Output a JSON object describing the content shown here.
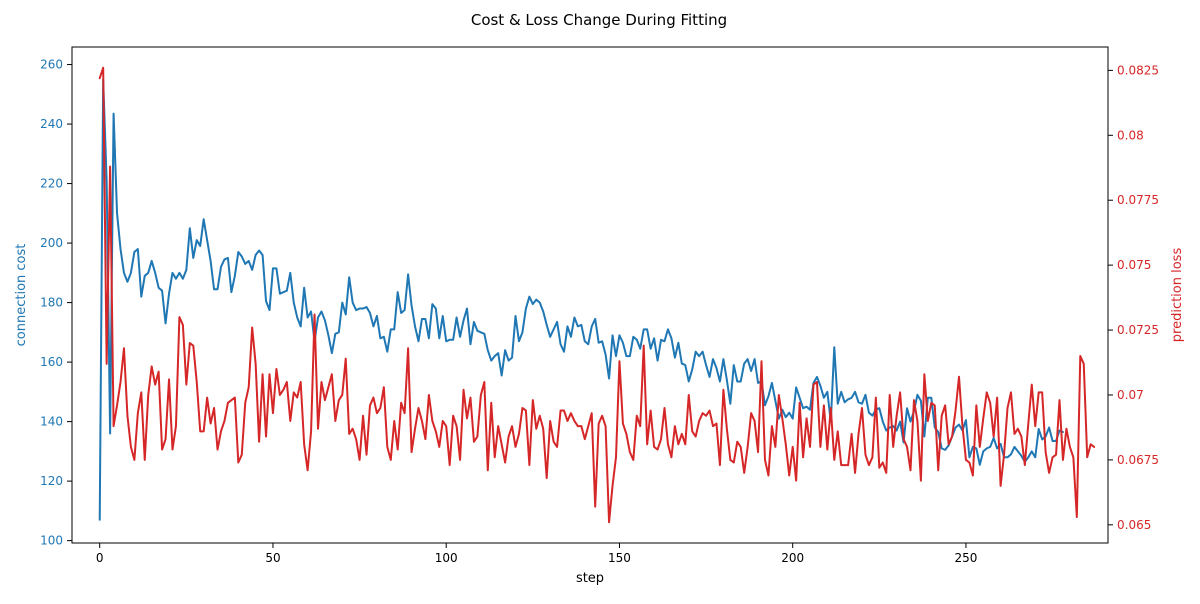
{
  "chart_data": {
    "type": "line",
    "title": "Cost & Loss Change During Fitting",
    "xlabel": "step",
    "xlim": [
      -8,
      291
    ],
    "x_ticks": [
      0,
      50,
      100,
      150,
      200,
      250
    ],
    "grid": false,
    "legend": "none",
    "series": [
      {
        "name": "connection cost",
        "axis": "left",
        "color": "#1f77b4",
        "ylabel": "connection cost",
        "ylim": [
          99.2,
          265.9
        ],
        "ticks": [
          100,
          120,
          140,
          160,
          180,
          200,
          220,
          240,
          260
        ],
        "values": [
          107.0,
          255.0,
          221.0,
          136.0,
          243.5,
          210.0,
          198.0,
          190.0,
          187.0,
          190.0,
          197.0,
          198.0,
          182.0,
          189.0,
          190.0,
          194.0,
          190.0,
          185.0,
          184.0,
          173.0,
          183.0,
          190.0,
          188.0,
          190.0,
          188.0,
          191.0,
          205.0,
          195.0,
          201.0,
          199.0,
          208.0,
          201.0,
          194.0,
          184.5,
          184.5,
          192.0,
          194.5,
          195.0,
          183.5,
          189.0,
          197.0,
          195.5,
          193.0,
          194.0,
          191.0,
          196.0,
          197.5,
          196.0,
          180.5,
          177.5,
          191.5,
          191.5,
          183.0,
          183.5,
          184.0,
          190.0,
          180.0,
          175.0,
          172.0,
          185.0,
          175.0,
          177.0,
          167.0,
          175.0,
          177.0,
          174.0,
          169.0,
          163.0,
          169.5,
          170.0,
          180.0,
          176.0,
          188.5,
          180.0,
          177.5,
          178.0,
          178.0,
          178.5,
          176.5,
          172.0,
          175.5,
          168.0,
          168.5,
          163.5,
          171.0,
          171.0,
          183.5,
          176.5,
          177.5,
          189.5,
          179.0,
          172.0,
          167.0,
          174.5,
          174.5,
          168.0,
          179.5,
          178.0,
          168.0,
          175.5,
          167.0,
          167.5,
          167.5,
          175.0,
          168.5,
          174.0,
          178.0,
          166.0,
          173.5,
          170.5,
          170.0,
          169.5,
          164.0,
          160.5,
          162.0,
          163.0,
          155.5,
          164.0,
          160.5,
          161.5,
          175.5,
          167.0,
          170.0,
          178.0,
          182.0,
          179.5,
          181.0,
          180.0,
          177.0,
          172.5,
          168.5,
          171.0,
          173.5,
          166.0,
          163.5,
          172.0,
          168.5,
          175.0,
          172.0,
          172.5,
          167.0,
          166.0,
          172.0,
          174.5,
          166.5,
          167.0,
          162.5,
          154.5,
          169.0,
          162.0,
          169.0,
          166.5,
          162.0,
          162.0,
          168.5,
          167.5,
          164.5,
          171.0,
          171.0,
          164.5,
          168.0,
          160.5,
          167.5,
          167.0,
          171.0,
          168.0,
          161.5,
          166.5,
          159.5,
          159.0,
          153.5,
          157.5,
          163.5,
          162.0,
          163.5,
          159.0,
          155.0,
          161.0,
          158.0,
          153.5,
          161.0,
          154.0,
          146.0,
          159.0,
          153.5,
          153.5,
          159.5,
          161.0,
          157.0,
          161.0,
          153.0,
          153.5,
          145.5,
          148.5,
          153.0,
          147.0,
          141.0,
          144.0,
          141.5,
          143.0,
          141.0,
          151.5,
          148.0,
          144.5,
          145.0,
          144.0,
          153.0,
          155.0,
          152.0,
          148.0,
          150.0,
          140.0,
          165.0,
          146.0,
          150.0,
          146.5,
          147.5,
          148.0,
          150.0,
          146.5,
          146.0,
          149.0,
          143.0,
          142.0,
          144.0,
          144.5,
          140.0,
          137.0,
          138.0,
          138.5,
          137.0,
          140.0,
          133.0,
          144.5,
          140.0,
          143.5,
          149.0,
          147.0,
          135.0,
          148.0,
          148.0,
          138.0,
          136.5,
          131.0,
          130.5,
          132.0,
          135.0,
          138.0,
          139.0,
          137.0,
          140.5,
          128.0,
          131.5,
          131.0,
          125.5,
          130.0,
          131.0,
          131.5,
          134.5,
          131.0,
          132.5,
          128.0,
          128.0,
          129.0,
          131.5,
          130.0,
          128.5,
          126.5,
          128.0,
          130.0,
          128.0,
          137.5,
          134.0,
          135.0,
          138.0,
          133.5,
          133.5,
          137.0,
          136.5
        ]
      },
      {
        "name": "prediction loss",
        "axis": "right",
        "color": "#d62728",
        "ylabel": "prediction loss",
        "ylim": [
          0.0643,
          0.0834
        ],
        "ticks": [
          0.065,
          0.0675,
          0.07,
          0.0725,
          0.075,
          0.0775,
          0.08,
          0.0825
        ],
        "values": [
          0.0822,
          0.0826,
          0.0712,
          0.0788,
          0.0688,
          0.0696,
          0.0705,
          0.0718,
          0.0692,
          0.068,
          0.0675,
          0.0693,
          0.0701,
          0.0675,
          0.07,
          0.0711,
          0.0704,
          0.0709,
          0.0679,
          0.0683,
          0.0706,
          0.0679,
          0.0688,
          0.073,
          0.0727,
          0.0704,
          0.072,
          0.0719,
          0.0705,
          0.0686,
          0.0686,
          0.0699,
          0.0689,
          0.0695,
          0.0679,
          0.0686,
          0.069,
          0.0697,
          0.0698,
          0.0699,
          0.0674,
          0.0677,
          0.0697,
          0.0703,
          0.0726,
          0.0712,
          0.0682,
          0.0708,
          0.0684,
          0.0708,
          0.0693,
          0.071,
          0.07,
          0.0702,
          0.0705,
          0.069,
          0.0701,
          0.0699,
          0.0705,
          0.0681,
          0.0671,
          0.0686,
          0.0731,
          0.0687,
          0.0705,
          0.0698,
          0.0703,
          0.0708,
          0.069,
          0.0698,
          0.07,
          0.0714,
          0.0685,
          0.0687,
          0.0683,
          0.0675,
          0.0692,
          0.0677,
          0.0696,
          0.0699,
          0.0693,
          0.0695,
          0.0703,
          0.068,
          0.0675,
          0.069,
          0.0679,
          0.0697,
          0.0693,
          0.0718,
          0.0678,
          0.0687,
          0.0695,
          0.069,
          0.0683,
          0.07,
          0.069,
          0.0686,
          0.068,
          0.069,
          0.0688,
          0.0673,
          0.0692,
          0.0688,
          0.0675,
          0.0702,
          0.0691,
          0.0699,
          0.0682,
          0.0684,
          0.07,
          0.0705,
          0.0671,
          0.0697,
          0.0676,
          0.0688,
          0.0681,
          0.0674,
          0.0684,
          0.0688,
          0.068,
          0.0685,
          0.0695,
          0.0694,
          0.0673,
          0.0698,
          0.0687,
          0.0692,
          0.0687,
          0.0668,
          0.069,
          0.0682,
          0.068,
          0.0694,
          0.0694,
          0.069,
          0.0693,
          0.069,
          0.0688,
          0.0688,
          0.0683,
          0.0688,
          0.0693,
          0.0657,
          0.0689,
          0.0692,
          0.0688,
          0.0651,
          0.0665,
          0.0676,
          0.0713,
          0.0689,
          0.0685,
          0.0678,
          0.0675,
          0.0692,
          0.0688,
          0.0719,
          0.0681,
          0.0694,
          0.068,
          0.0679,
          0.0683,
          0.0695,
          0.0681,
          0.0676,
          0.0688,
          0.0681,
          0.0685,
          0.0681,
          0.07,
          0.0686,
          0.0684,
          0.069,
          0.0693,
          0.0692,
          0.0694,
          0.0688,
          0.0689,
          0.0673,
          0.0702,
          0.0687,
          0.0675,
          0.0674,
          0.0682,
          0.068,
          0.067,
          0.068,
          0.0693,
          0.069,
          0.0678,
          0.0713,
          0.0675,
          0.0669,
          0.0688,
          0.068,
          0.07,
          0.0691,
          0.0681,
          0.0669,
          0.068,
          0.0667,
          0.0697,
          0.0676,
          0.0691,
          0.068,
          0.0704,
          0.0705,
          0.068,
          0.0696,
          0.0679,
          0.0695,
          0.0675,
          0.0686,
          0.0673,
          0.0673,
          0.0673,
          0.0685,
          0.067,
          0.0685,
          0.0695,
          0.0677,
          0.0673,
          0.0676,
          0.0699,
          0.0672,
          0.0674,
          0.067,
          0.07,
          0.068,
          0.0692,
          0.0701,
          0.0683,
          0.068,
          0.0671,
          0.0698,
          0.069,
          0.0667,
          0.0708,
          0.069,
          0.0697,
          0.0696,
          0.0671,
          0.0692,
          0.0696,
          0.0681,
          0.0684,
          0.0694,
          0.0707,
          0.0688,
          0.0675,
          0.0674,
          0.0669,
          0.0696,
          0.068,
          0.0691,
          0.0701,
          0.0697,
          0.0684,
          0.0699,
          0.0665,
          0.0677,
          0.0695,
          0.0701,
          0.0685,
          0.0687,
          0.0684,
          0.0673,
          0.0689,
          0.0704,
          0.0688,
          0.0701,
          0.0701,
          0.0678,
          0.067,
          0.0676,
          0.0677,
          0.0698,
          0.0675,
          0.0687,
          0.068,
          0.0676,
          0.0653,
          0.0715,
          0.0712,
          0.0676,
          0.0681,
          0.068
        ]
      }
    ]
  }
}
